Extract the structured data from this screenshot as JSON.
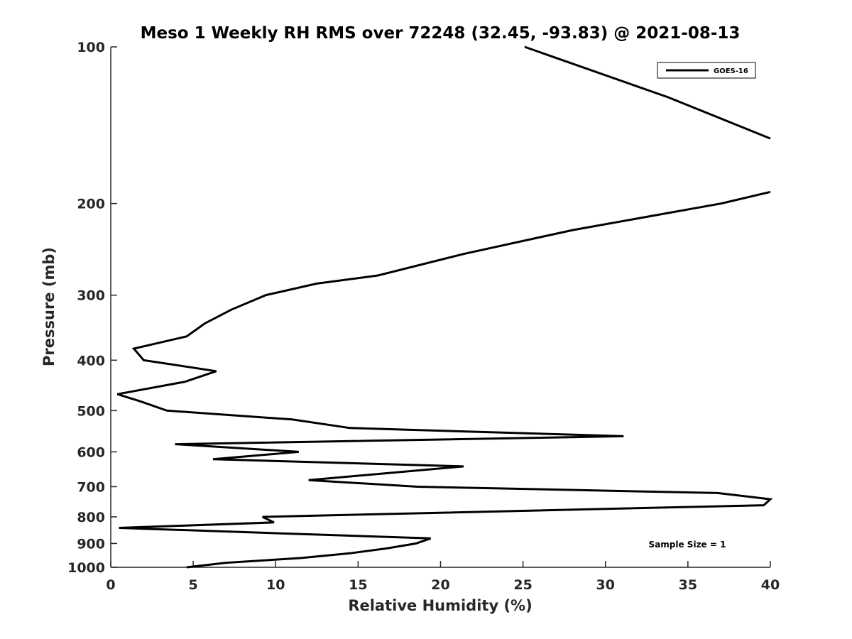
{
  "chart_data": {
    "type": "line",
    "title": "Meso 1 Weekly RH RMS over 72248 (32.45, -93.83) @ 2021-08-13",
    "xlabel": "Relative Humidity (%)",
    "ylabel": "Pressure (mb)",
    "xlim": [
      0,
      40
    ],
    "ylim": [
      100,
      1000
    ],
    "y_scale": "log",
    "y_reversed": true,
    "x_ticks": [
      "0",
      "5",
      "10",
      "15",
      "20",
      "25",
      "30",
      "35",
      "40"
    ],
    "y_ticks": [
      "100",
      "200",
      "300",
      "400",
      "500",
      "600",
      "700",
      "800",
      "900",
      "1000"
    ],
    "grid": false,
    "legend_position": "top-right",
    "annotation": "Sample Size = 1",
    "series": [
      {
        "name": "GOES-16",
        "color": "#000000",
        "points": [
          {
            "x": 25.1,
            "y": 100
          },
          {
            "x": 33.8,
            "y": 125
          },
          {
            "x": 40.0,
            "y": 150
          },
          {
            "x": null,
            "y": null
          },
          {
            "x": 40.0,
            "y": 190
          },
          {
            "x": 37.0,
            "y": 200
          },
          {
            "x": 28.0,
            "y": 225
          },
          {
            "x": 21.4,
            "y": 250
          },
          {
            "x": 16.2,
            "y": 275
          },
          {
            "x": 12.5,
            "y": 285
          },
          {
            "x": 9.4,
            "y": 300
          },
          {
            "x": 7.3,
            "y": 320
          },
          {
            "x": 5.7,
            "y": 340
          },
          {
            "x": 4.6,
            "y": 360
          },
          {
            "x": 1.4,
            "y": 380
          },
          {
            "x": 2.0,
            "y": 400
          },
          {
            "x": 6.4,
            "y": 420
          },
          {
            "x": 4.5,
            "y": 440
          },
          {
            "x": 0.4,
            "y": 465
          },
          {
            "x": 1.8,
            "y": 480
          },
          {
            "x": 3.4,
            "y": 500
          },
          {
            "x": 11.0,
            "y": 520
          },
          {
            "x": 14.5,
            "y": 540
          },
          {
            "x": 31.1,
            "y": 560
          },
          {
            "x": 3.9,
            "y": 580
          },
          {
            "x": 11.4,
            "y": 600
          },
          {
            "x": 6.2,
            "y": 620
          },
          {
            "x": 21.4,
            "y": 640
          },
          {
            "x": 12.0,
            "y": 680
          },
          {
            "x": 18.6,
            "y": 700
          },
          {
            "x": 36.8,
            "y": 720
          },
          {
            "x": 40.0,
            "y": 740
          },
          {
            "x": 39.6,
            "y": 760
          },
          {
            "x": 9.2,
            "y": 800
          },
          {
            "x": 9.9,
            "y": 820
          },
          {
            "x": 0.5,
            "y": 840
          },
          {
            "x": 19.4,
            "y": 880
          },
          {
            "x": 18.5,
            "y": 900
          },
          {
            "x": 16.7,
            "y": 920
          },
          {
            "x": 14.5,
            "y": 940
          },
          {
            "x": 11.5,
            "y": 960
          },
          {
            "x": 7.0,
            "y": 980
          },
          {
            "x": 4.6,
            "y": 1000
          }
        ]
      }
    ]
  }
}
